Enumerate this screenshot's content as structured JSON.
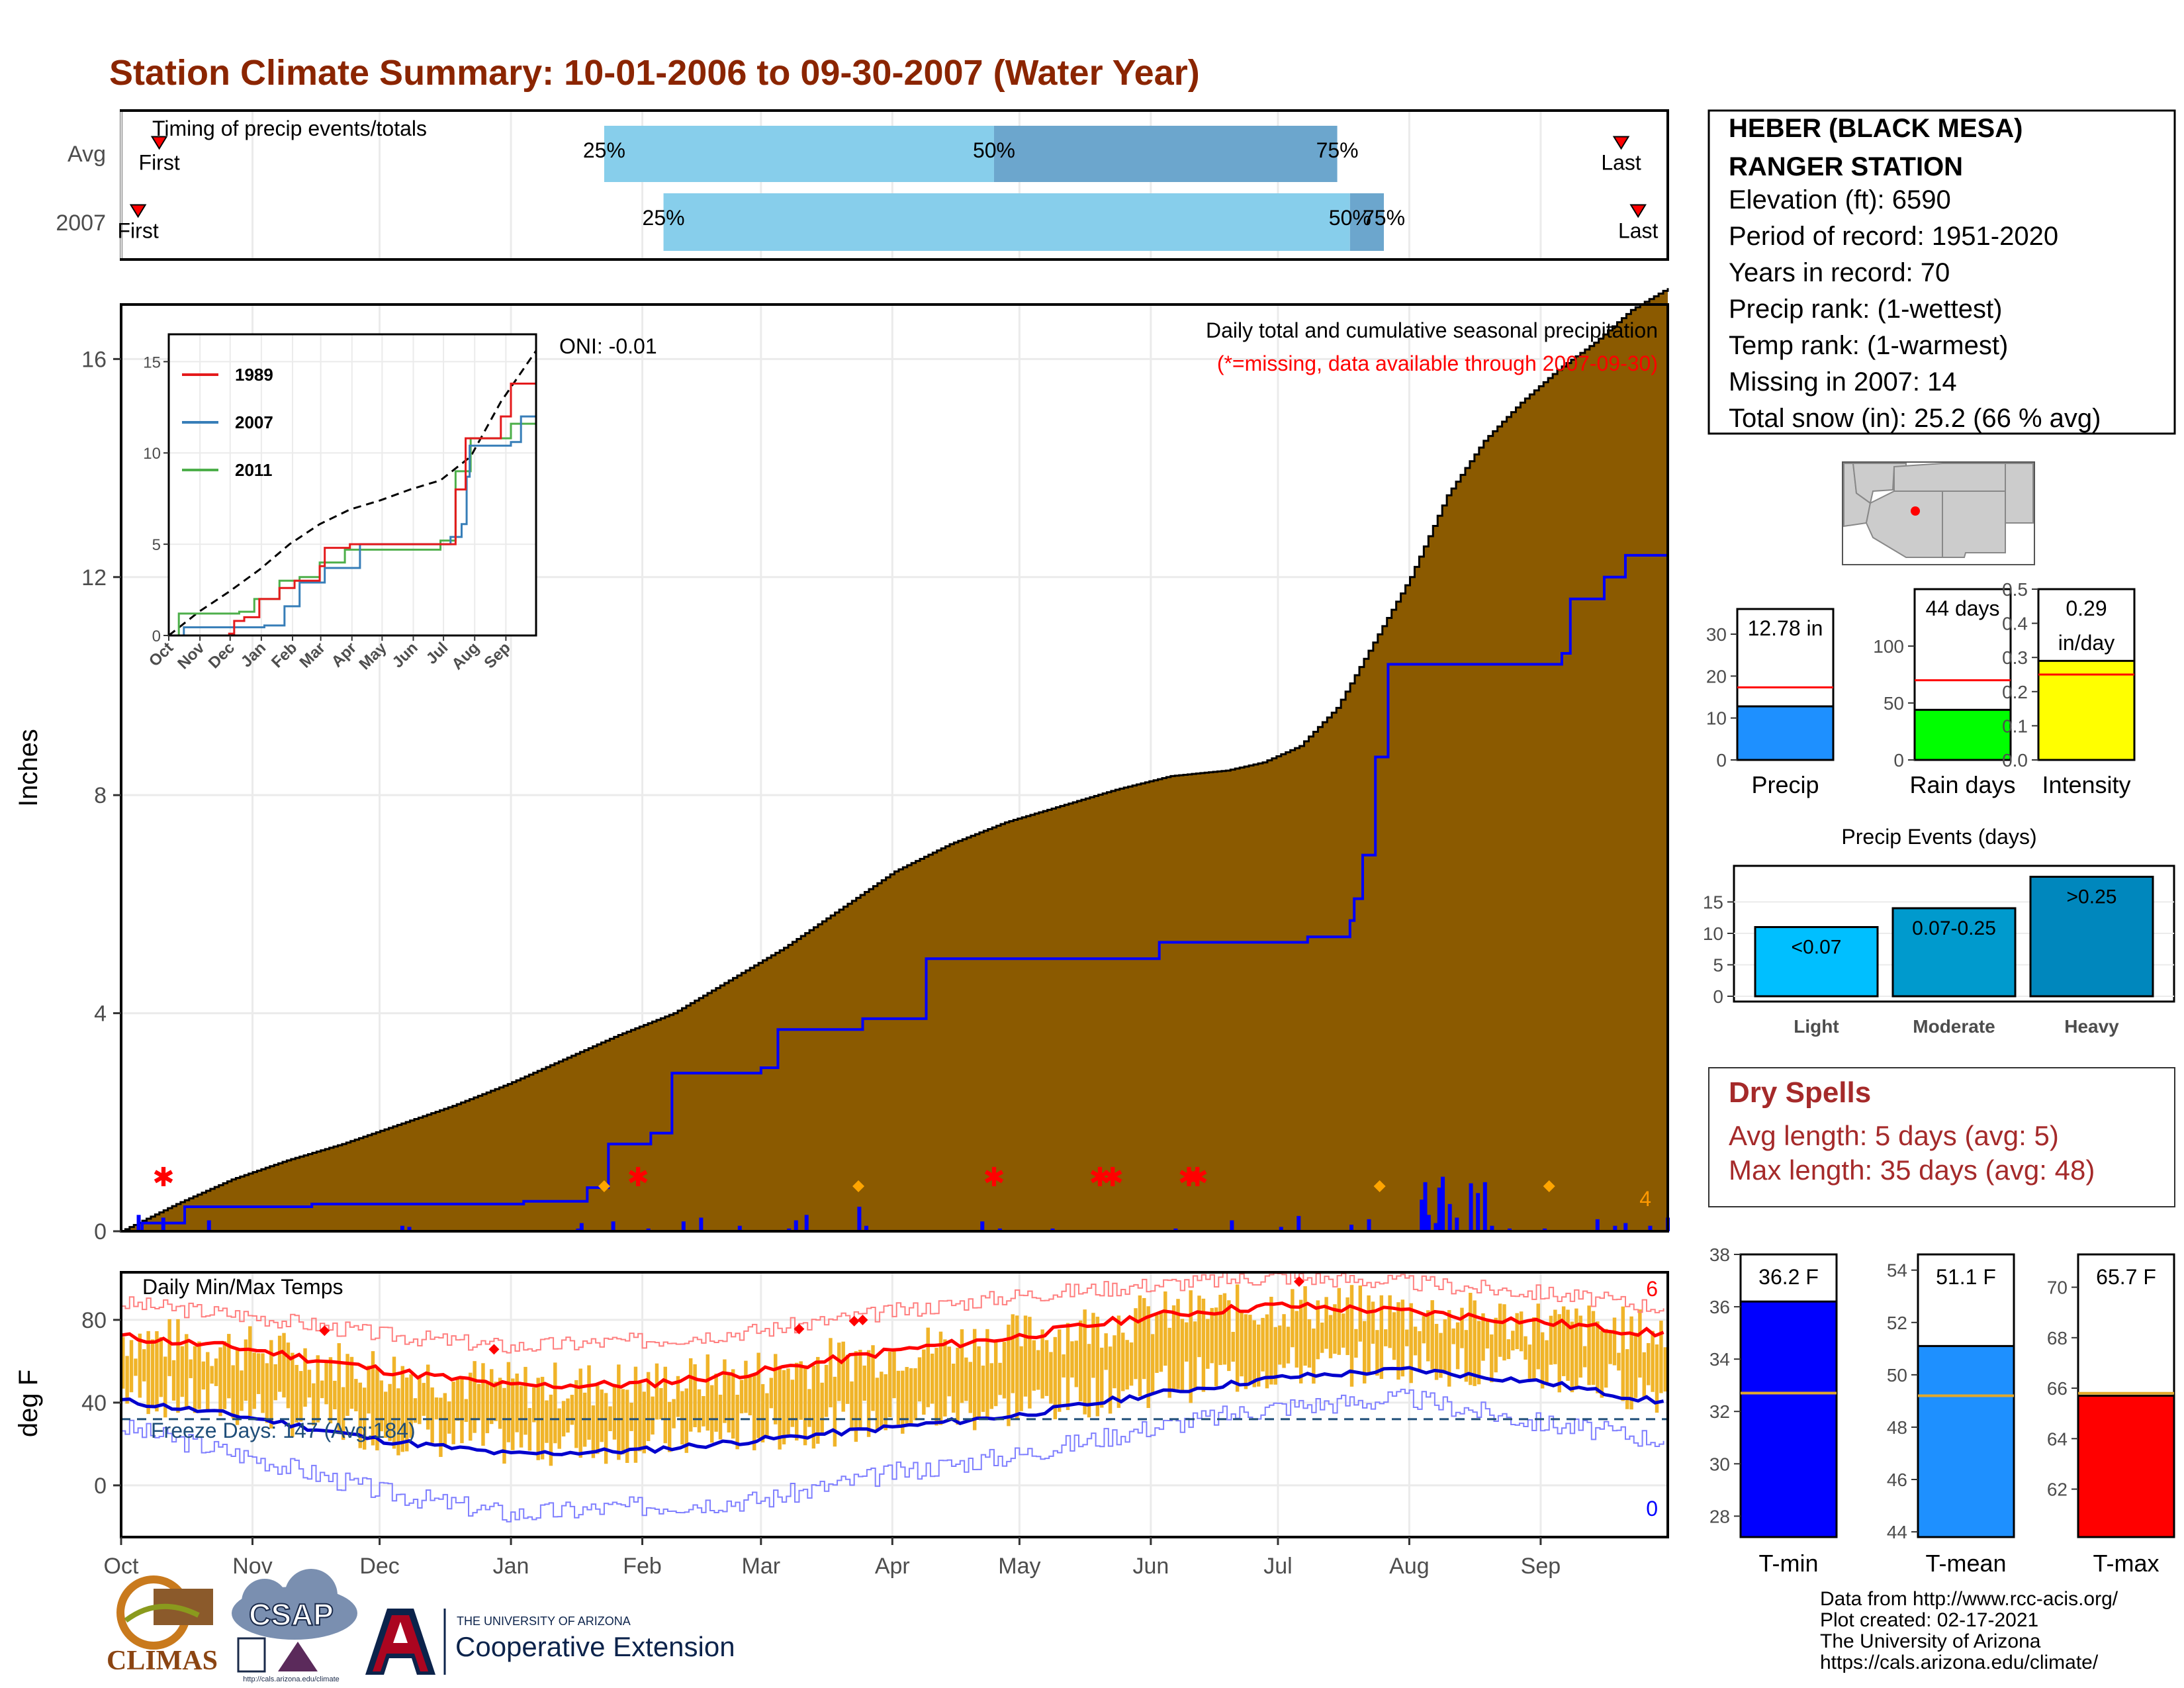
{
  "title": "Station Climate Summary: 10-01-2006 to 09-30-2007 (Water Year)",
  "station": {
    "name_line1": "HEBER (BLACK MESA)",
    "name_line2": "RANGER STATION",
    "elevation": "Elevation (ft): 6590",
    "period": "Period of record: 1951-2020",
    "years": "Years in record: 70",
    "precip_rank": "Precip rank:  (1-wettest)",
    "temp_rank": "Temp rank:  (1-warmest)",
    "missing": "Missing in 2007: 14",
    "snow": "Total snow (in): 25.2 (66 % avg)"
  },
  "timing": {
    "label": "Timing of precip events/totals",
    "rows": [
      "Avg",
      "2007"
    ],
    "first_label": "First",
    "last_label": "Last",
    "avg": {
      "first_day": 9,
      "p25_day": 114,
      "p50_day": 206,
      "p75_day": 287,
      "last_day": 354,
      "p25": "25%",
      "p50": "50%",
      "p75": "75%"
    },
    "y2007": {
      "first_day": 4,
      "p25_day": 128,
      "p50_day": 290,
      "p75_day": 298,
      "last_day": 358,
      "p25": "25%",
      "p50": "50%",
      "p75": "75%"
    }
  },
  "precip_panel": {
    "ylabel": "Inches",
    "annotation": "Daily total and cumulative seasonal precipitation",
    "missing_note": "(*=missing, data available through 2007-09-30)",
    "oni": "ONI: -0.01",
    "count_label": "4",
    "yticks": [
      0,
      4,
      8,
      12,
      16
    ],
    "ylim": [
      0,
      17
    ],
    "avg_cum": [
      [
        0,
        0
      ],
      [
        15,
        0.5
      ],
      [
        30,
        0.95
      ],
      [
        45,
        1.3
      ],
      [
        60,
        1.6
      ],
      [
        75,
        1.95
      ],
      [
        90,
        2.3
      ],
      [
        105,
        2.7
      ],
      [
        120,
        3.15
      ],
      [
        135,
        3.6
      ],
      [
        150,
        4.0
      ],
      [
        165,
        4.6
      ],
      [
        180,
        5.2
      ],
      [
        195,
        5.9
      ],
      [
        210,
        6.6
      ],
      [
        225,
        7.1
      ],
      [
        240,
        7.5
      ],
      [
        255,
        7.8
      ],
      [
        270,
        8.1
      ],
      [
        285,
        8.35
      ],
      [
        300,
        8.45
      ],
      [
        310,
        8.6
      ],
      [
        320,
        8.9
      ],
      [
        330,
        9.6
      ],
      [
        340,
        10.8
      ],
      [
        350,
        12.0
      ],
      [
        360,
        13.5
      ],
      [
        370,
        14.5
      ],
      [
        380,
        15.2
      ],
      [
        390,
        15.8
      ],
      [
        400,
        16.3
      ],
      [
        410,
        16.9
      ],
      [
        420,
        17.3
      ]
    ],
    "cum_2007": [
      [
        0,
        0
      ],
      [
        5,
        0.2
      ],
      [
        10,
        0.22
      ],
      [
        12,
        0.45
      ],
      [
        80,
        0.5
      ],
      [
        82,
        0.48
      ],
      [
        160,
        0.62
      ],
      [
        220,
        0.62
      ],
      [
        232,
        0.98
      ],
      [
        236,
        1.6
      ],
      [
        262,
        2.2
      ],
      [
        280,
        3.0
      ],
      [
        300,
        3.9
      ],
      [
        330,
        5.0
      ],
      [
        350,
        6.2
      ],
      [
        370,
        7.4
      ],
      [
        372,
        8.3
      ],
      [
        374,
        9.2
      ],
      [
        378,
        10.3
      ],
      [
        385,
        10.6
      ],
      [
        405,
        11.1
      ],
      [
        420,
        12.78
      ]
    ],
    "cum_2007_actual": [
      [
        0,
        0
      ],
      [
        5,
        0.15
      ],
      [
        15,
        0.45
      ],
      [
        45,
        0.5
      ],
      [
        95,
        0.55
      ],
      [
        110,
        0.8
      ],
      [
        115,
        1.6
      ],
      [
        125,
        1.8
      ],
      [
        130,
        2.9
      ],
      [
        151,
        3.0
      ],
      [
        155,
        3.7
      ],
      [
        175,
        3.9
      ],
      [
        190,
        5.0
      ],
      [
        245,
        5.3
      ],
      [
        280,
        5.4
      ],
      [
        290,
        5.7
      ],
      [
        291,
        6.1
      ],
      [
        293,
        6.9
      ],
      [
        296,
        8.7
      ],
      [
        299,
        10.4
      ],
      [
        340,
        10.6
      ],
      [
        342,
        11.6
      ],
      [
        350,
        12.0
      ],
      [
        355,
        12.4
      ],
      [
        365,
        12.78
      ]
    ],
    "daily_bars": [
      [
        5,
        0.3
      ],
      [
        12,
        0.25
      ],
      [
        25,
        0.2
      ],
      [
        80,
        0.1
      ],
      [
        82,
        0.08
      ],
      [
        130,
        0.05
      ],
      [
        131,
        0.15
      ],
      [
        140,
        0.18
      ],
      [
        150,
        0.05
      ],
      [
        160,
        0.18
      ],
      [
        165,
        0.25
      ],
      [
        176,
        0.1
      ],
      [
        190,
        0.05
      ],
      [
        192,
        0.2
      ],
      [
        195,
        0.3
      ],
      [
        210,
        0.45
      ],
      [
        212,
        0.1
      ],
      [
        245,
        0.18
      ],
      [
        250,
        0.05
      ],
      [
        265,
        0.05
      ],
      [
        300,
        0.05
      ],
      [
        316,
        0.2
      ],
      [
        330,
        0.08
      ],
      [
        335,
        0.28
      ],
      [
        350,
        0.12
      ],
      [
        355,
        0.22
      ],
      [
        370,
        0.58
      ],
      [
        371,
        0.9
      ],
      [
        372,
        0.3
      ],
      [
        374,
        0.15
      ],
      [
        375,
        0.8
      ],
      [
        376,
        1.0
      ],
      [
        378,
        0.5
      ],
      [
        380,
        0.25
      ],
      [
        384,
        0.88
      ],
      [
        386,
        0.7
      ],
      [
        388,
        0.9
      ],
      [
        390,
        0.1
      ],
      [
        395,
        0.05
      ],
      [
        405,
        0.05
      ],
      [
        410,
        0.02
      ],
      [
        420,
        0.22
      ],
      [
        425,
        0.1
      ],
      [
        428,
        0.15
      ],
      [
        435,
        0.1
      ],
      [
        440,
        0.25
      ]
    ],
    "missing_days": [
      10,
      122,
      206,
      231,
      234,
      252,
      254
    ],
    "record_days": [
      114,
      174,
      297,
      337
    ]
  },
  "inset": {
    "yticks": [
      0,
      5,
      10,
      15
    ],
    "months": [
      "Oct",
      "Nov",
      "Dec",
      "Jan",
      "Feb",
      "Mar",
      "Apr",
      "May",
      "Jun",
      "Jul",
      "Aug",
      "Sep"
    ],
    "legend": [
      {
        "name": "1989",
        "color": "#e41a1c"
      },
      {
        "name": "2007",
        "color": "#377eb8"
      },
      {
        "name": "2011",
        "color": "#4daf4a"
      }
    ],
    "avg": [
      [
        0,
        0
      ],
      [
        30,
        1.3
      ],
      [
        60,
        2.4
      ],
      [
        90,
        3.6
      ],
      [
        120,
        5.0
      ],
      [
        150,
        6.1
      ],
      [
        180,
        6.9
      ],
      [
        210,
        7.4
      ],
      [
        240,
        8.0
      ],
      [
        270,
        8.5
      ],
      [
        300,
        9.8
      ],
      [
        330,
        12.8
      ],
      [
        365,
        15.6
      ]
    ],
    "s1989": [
      [
        0,
        0
      ],
      [
        60,
        0.1
      ],
      [
        65,
        0.8
      ],
      [
        75,
        1.0
      ],
      [
        90,
        2.0
      ],
      [
        110,
        2.6
      ],
      [
        125,
        3.0
      ],
      [
        150,
        3.8
      ],
      [
        155,
        4.8
      ],
      [
        180,
        5.0
      ],
      [
        275,
        5.0
      ],
      [
        285,
        8.0
      ],
      [
        295,
        10.8
      ],
      [
        330,
        12.0
      ],
      [
        340,
        13.8
      ],
      [
        365,
        14.0
      ]
    ],
    "s2007": [
      [
        0,
        0
      ],
      [
        15,
        0.45
      ],
      [
        95,
        0.55
      ],
      [
        115,
        1.6
      ],
      [
        130,
        2.9
      ],
      [
        155,
        3.7
      ],
      [
        190,
        5.0
      ],
      [
        280,
        5.4
      ],
      [
        291,
        6.1
      ],
      [
        296,
        8.7
      ],
      [
        299,
        10.4
      ],
      [
        340,
        10.6
      ],
      [
        350,
        12.0
      ],
      [
        365,
        12.78
      ]
    ],
    "s2011": [
      [
        0,
        0
      ],
      [
        10,
        1.2
      ],
      [
        70,
        1.3
      ],
      [
        85,
        2.0
      ],
      [
        110,
        3.0
      ],
      [
        130,
        3.2
      ],
      [
        150,
        4.0
      ],
      [
        175,
        4.7
      ],
      [
        270,
        5.2
      ],
      [
        285,
        9.0
      ],
      [
        300,
        10.8
      ],
      [
        340,
        11.6
      ],
      [
        365,
        11.8
      ]
    ]
  },
  "temp_panel": {
    "ylabel": "deg F",
    "label": "Daily Min/Max Temps",
    "freeze_label": "Freeze Days: 147 (Avg:184)",
    "freeze_level": 32,
    "yticks": [
      0,
      40,
      80
    ],
    "ylim": [
      -25,
      103
    ],
    "top_count": "6",
    "bottom_count": "0",
    "avg_max": [
      [
        0,
        72
      ],
      [
        30,
        66
      ],
      [
        61,
        56
      ],
      [
        92,
        48
      ],
      [
        123,
        49
      ],
      [
        151,
        55
      ],
      [
        182,
        65
      ],
      [
        212,
        72
      ],
      [
        243,
        82
      ],
      [
        273,
        87
      ],
      [
        304,
        84
      ],
      [
        335,
        79
      ],
      [
        364,
        73
      ]
    ],
    "avg_min": [
      [
        0,
        41
      ],
      [
        30,
        33
      ],
      [
        61,
        22
      ],
      [
        92,
        15
      ],
      [
        123,
        17
      ],
      [
        151,
        22
      ],
      [
        182,
        28
      ],
      [
        212,
        34
      ],
      [
        243,
        44
      ],
      [
        273,
        52
      ],
      [
        304,
        56
      ],
      [
        335,
        50
      ],
      [
        364,
        40
      ]
    ],
    "rec_max": [
      [
        0,
        88
      ],
      [
        30,
        82
      ],
      [
        61,
        73
      ],
      [
        92,
        67
      ],
      [
        123,
        70
      ],
      [
        151,
        75
      ],
      [
        182,
        84
      ],
      [
        212,
        92
      ],
      [
        243,
        97
      ],
      [
        273,
        101
      ],
      [
        304,
        98
      ],
      [
        335,
        93
      ],
      [
        364,
        86
      ]
    ],
    "rec_min": [
      [
        0,
        28
      ],
      [
        30,
        14
      ],
      [
        61,
        -3
      ],
      [
        92,
        -14
      ],
      [
        123,
        -10
      ],
      [
        151,
        -7
      ],
      [
        182,
        6
      ],
      [
        212,
        15
      ],
      [
        243,
        28
      ],
      [
        273,
        38
      ],
      [
        304,
        42
      ],
      [
        335,
        30
      ],
      [
        364,
        22
      ]
    ]
  },
  "x_months": [
    "Oct",
    "Nov",
    "Dec",
    "Jan",
    "Feb",
    "Mar",
    "Apr",
    "May",
    "Jun",
    "Jul",
    "Aug",
    "Sep"
  ],
  "month_starts": [
    0,
    31,
    61,
    92,
    123,
    151,
    182,
    212,
    243,
    273,
    304,
    335
  ],
  "bars": {
    "precip": {
      "label": "Precip",
      "value_label": "12.78 in",
      "value": 12.78,
      "avg": 17.3,
      "ymax": 36,
      "yticks": [
        0,
        10,
        20,
        30
      ],
      "color": "#1e90ff"
    },
    "raindays": {
      "label": "Rain days",
      "value_label": "44 days",
      "value": 44,
      "avg": 70,
      "ymax": 150,
      "yticks": [
        0,
        50,
        100
      ],
      "color": "#00ff00"
    },
    "intensity": {
      "label": "Intensity",
      "value_label": "0.29",
      "value_label2": "in/day",
      "value": 0.29,
      "avg": 0.25,
      "ymax": 0.5,
      "yticks": [
        "0.0",
        "0.1",
        "0.2",
        "0.3",
        "0.4",
        "0.5"
      ],
      "color": "#ffff00"
    }
  },
  "events": {
    "title": "Precip Events (days)",
    "yticks": [
      0,
      5,
      10,
      15
    ],
    "ymax": 20,
    "categories": [
      "Light",
      "Moderate",
      "Heavy"
    ],
    "labels": [
      "<0.07",
      "0.07-0.25",
      ">0.25"
    ],
    "values": [
      11,
      14,
      19
    ],
    "colors": [
      "#00bfff",
      "#009acd",
      "#0087bd"
    ]
  },
  "dry_spells": {
    "title": "Dry Spells",
    "avg": "Avg length: 5 days (avg: 5)",
    "max": "Max length: 35 days (avg: 48)"
  },
  "temp_bars": [
    {
      "label": "T-min",
      "value_label": "36.2 F",
      "value": 36.2,
      "avg": 32.7,
      "ymin": 27.2,
      "ymax": 38,
      "yticks": [
        28,
        30,
        32,
        34,
        36,
        38
      ],
      "color": "#0000ff"
    },
    {
      "label": "T-mean",
      "value_label": "51.1 F",
      "value": 51.1,
      "avg": 49.2,
      "ymin": 43.8,
      "ymax": 54.6,
      "yticks": [
        44,
        46,
        48,
        50,
        52,
        54
      ],
      "color": "#1e90ff"
    },
    {
      "label": "T-max",
      "value_label": "65.7 F",
      "value": 65.7,
      "avg": 65.8,
      "ymin": 60.1,
      "ymax": 71.3,
      "yticks": [
        62,
        64,
        66,
        68,
        70
      ],
      "color": "#ff0000"
    }
  ],
  "footer": {
    "line1": "Data from http://www.rcc-acis.org/",
    "line2": "Plot created: 02-17-2021",
    "line3": "The University of Arizona",
    "line4": "https://cals.arizona.edu/climate/"
  },
  "logos": {
    "climas": "CLIMAS",
    "csap": "CSAP",
    "csap_url": "http://cals.arizona.edu/climate",
    "ua_small": "THE UNIVERSITY OF ARIZONA",
    "ua_big": "Cooperative Extension"
  },
  "colors": {
    "title": "#8b2500",
    "cum_fill": "#8b5a00",
    "bg_fill": "#e0e0e0",
    "timing_light": "#87ceeb",
    "timing_dark": "#6ca6cd",
    "temp_bar": "#f0b429"
  }
}
